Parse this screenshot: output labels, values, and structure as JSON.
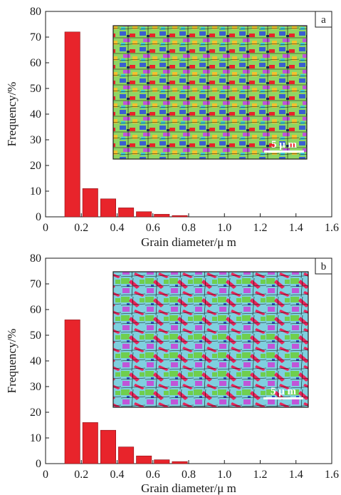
{
  "chart_data": [
    {
      "type": "bar",
      "panel_label": "a",
      "x": [
        0.15,
        0.25,
        0.35,
        0.45,
        0.55,
        0.65,
        0.75
      ],
      "values": [
        72,
        11,
        7,
        3.5,
        2,
        1,
        0.5
      ],
      "xlabel": "Grain diameter/μ m",
      "ylabel": "Frequency/%",
      "xlim": [
        0,
        1.6
      ],
      "ylim": [
        0,
        80
      ],
      "xticks": [
        "0",
        "0.2",
        "0.4",
        "0.6",
        "0.8",
        "1.0",
        "1.2",
        "1.4",
        "1.6"
      ],
      "yticks": [
        "0",
        "10",
        "20",
        "30",
        "40",
        "50",
        "60",
        "70",
        "80"
      ],
      "bar_width": 0.085,
      "bar_color": "#e8242b",
      "grid": false,
      "inset": {
        "scale_bar_label": "5 μ m",
        "dominant_colors": [
          "#7ed45a",
          "#3a5fd0",
          "#e8242b",
          "#f2c12e",
          "#c055d8"
        ]
      }
    },
    {
      "type": "bar",
      "panel_label": "b",
      "x": [
        0.15,
        0.25,
        0.35,
        0.45,
        0.55,
        0.65,
        0.75
      ],
      "values": [
        56,
        16,
        13,
        6.5,
        3,
        1.5,
        0.8
      ],
      "xlabel": "Grain diameter/μ m",
      "ylabel": "Frequency/%",
      "xlim": [
        0,
        1.6
      ],
      "ylim": [
        0,
        80
      ],
      "xticks": [
        "0",
        "0.2",
        "0.4",
        "0.6",
        "0.8",
        "1.0",
        "1.2",
        "1.4",
        "1.6"
      ],
      "yticks": [
        "0",
        "10",
        "20",
        "30",
        "40",
        "50",
        "60",
        "70",
        "80"
      ],
      "bar_width": 0.085,
      "bar_color": "#e8242b",
      "grid": false,
      "inset": {
        "scale_bar_label": "5 μ m",
        "dominant_colors": [
          "#6cc8e0",
          "#7ed45a",
          "#e8245a",
          "#c055d8",
          "#2f4fc0"
        ]
      }
    }
  ]
}
